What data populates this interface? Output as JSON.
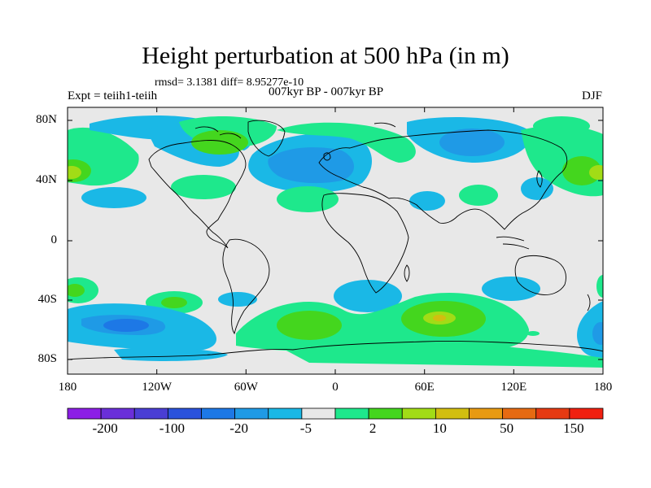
{
  "title": "Height perturbation at 500 hPa (in m)",
  "stats": "rmsd= 3.1381 diff= 8.95277e-10",
  "experiment": "Expt = teiih1-teiih",
  "period": "007kyr BP - 007kyr BP",
  "season": "DJF",
  "lat_ticks": [
    "80N",
    "40N",
    "0",
    "40S",
    "80S"
  ],
  "lon_ticks": [
    "180",
    "120W",
    "60W",
    "0",
    "60E",
    "120E",
    "180"
  ],
  "colorbar": {
    "labels": [
      "-200",
      "-100",
      "-20",
      "-5",
      "2",
      "10",
      "50",
      "150"
    ],
    "colors": [
      "#8c1ee6",
      "#6a2fd9",
      "#4a3ed4",
      "#2a52dc",
      "#1d78e6",
      "#1f9ae6",
      "#1ab8e6",
      "#e8e8e8",
      "#1ee88c",
      "#44d61e",
      "#a2dc16",
      "#d2be10",
      "#e89a12",
      "#e66a12",
      "#e63a12",
      "#f02010"
    ]
  },
  "field_colors": {
    "land_bg": "#e8e8e8",
    "neg_light": "#1ab8e6",
    "neg_mid": "#1f9ae6",
    "neg_dark": "#1d78e6",
    "pos_light": "#1ee88c",
    "pos_mid": "#44d61e",
    "pos_high": "#a2dc16"
  }
}
